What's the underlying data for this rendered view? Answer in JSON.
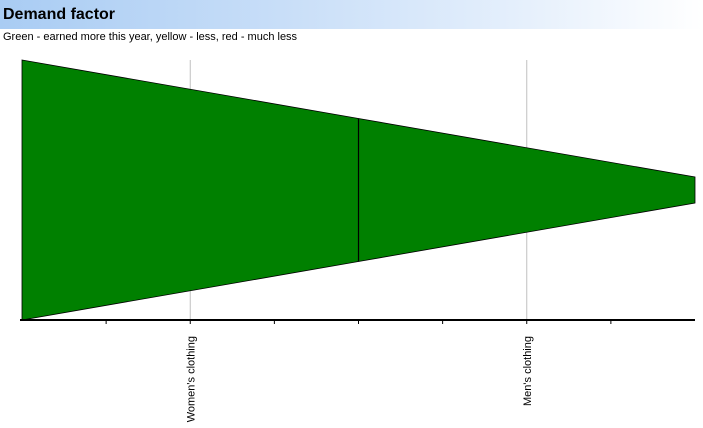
{
  "header": {
    "title": "Demand factor",
    "subtitle": "Green - earned more this year, yellow - less, red - much less"
  },
  "colors": {
    "band_fill": "#008000",
    "band_stroke": "#000000",
    "gridline": "#c0c0c0",
    "axis": "#000000"
  },
  "chart_data": {
    "type": "area",
    "title": "Demand factor",
    "subtitle": "Green - earned more this year, yellow - less, red - much less",
    "categories": [
      "Women's clothing",
      "Men's clothing"
    ],
    "x_range": [
      0,
      2
    ],
    "y_range": [
      -0.5,
      0.5
    ],
    "boundaries": [
      0,
      1,
      2
    ],
    "band_height": [
      1.0,
      0.55,
      0.1
    ],
    "band_color_meaning": "green",
    "grid": true,
    "legend": "none"
  }
}
